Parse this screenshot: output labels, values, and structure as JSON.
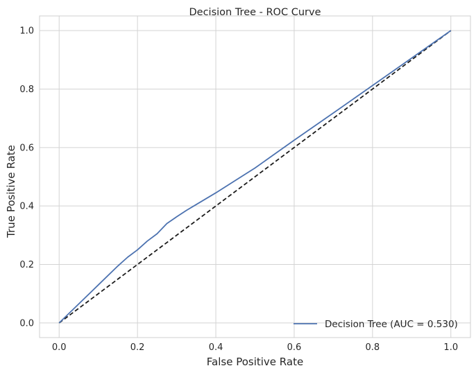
{
  "chart_data": {
    "type": "line",
    "title": "Decision Tree - ROC Curve",
    "xlabel": "False Positive Rate",
    "ylabel": "True Positive Rate",
    "xlim": [
      -0.05,
      1.05
    ],
    "ylim": [
      -0.05,
      1.05
    ],
    "xticks": [
      0.0,
      0.2,
      0.4,
      0.6,
      0.8,
      1.0
    ],
    "yticks": [
      0.0,
      0.2,
      0.4,
      0.6,
      0.8,
      1.0
    ],
    "xtick_labels": [
      "0.0",
      "0.2",
      "0.4",
      "0.6",
      "0.8",
      "1.0"
    ],
    "ytick_labels": [
      "0.0",
      "0.2",
      "0.4",
      "0.6",
      "0.8",
      "1.0"
    ],
    "grid": true,
    "legend_position": "lower-right",
    "series": [
      {
        "name": "Decision Tree (AUC = 0.530)",
        "color": "#4c72b0",
        "style": "solid",
        "x": [
          0.0,
          0.05,
          0.1,
          0.15,
          0.175,
          0.2,
          0.225,
          0.25,
          0.275,
          0.3,
          0.325,
          0.35,
          0.4,
          0.5,
          0.6,
          0.7,
          0.8,
          0.9,
          1.0
        ],
        "y": [
          0.0,
          0.065,
          0.13,
          0.195,
          0.225,
          0.25,
          0.28,
          0.305,
          0.34,
          0.363,
          0.385,
          0.405,
          0.445,
          0.53,
          0.625,
          0.718,
          0.812,
          0.906,
          1.0
        ]
      },
      {
        "name": "",
        "color": "#1a1a1a",
        "style": "dashed",
        "x": [
          0.0,
          1.0
        ],
        "y": [
          0.0,
          1.0
        ]
      }
    ]
  }
}
